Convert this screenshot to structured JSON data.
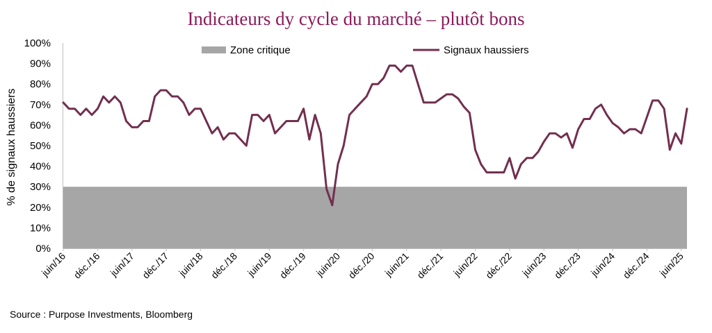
{
  "title": "Indicateurs dy cycle du marché – plutôt bons",
  "source": "Source : Purpose Investments, Bloomberg",
  "chart_data": {
    "type": "line",
    "title": "Indicateurs dy cycle du marché – plutôt bons",
    "ylabel": "% de signaux haussiers",
    "xlabel": "",
    "ylim": [
      0,
      100
    ],
    "y_ticks": [
      "0%",
      "10%",
      "20%",
      "30%",
      "40%",
      "50%",
      "60%",
      "70%",
      "80%",
      "90%",
      "100%"
    ],
    "x_tick_labels": [
      "juin/16",
      "déc./16",
      "juin/17",
      "déc./17",
      "juin/18",
      "déc./18",
      "juin/19",
      "déc./19",
      "juin/20",
      "déc./20",
      "juin/21",
      "déc./21",
      "juin/22",
      "déc./22",
      "juin/23",
      "déc./23",
      "juin/24",
      "déc./24",
      "juin/25"
    ],
    "x_start": "2016-06",
    "critical_zone": {
      "name": "Zone critique",
      "from": 0,
      "to": 30,
      "color": "#a6a6a6"
    },
    "series": [
      {
        "name": "Signaux haussiers",
        "color": "#722F4F",
        "values": [
          71,
          68,
          68,
          65,
          68,
          65,
          68,
          74,
          71,
          74,
          71,
          62,
          59,
          59,
          62,
          62,
          74,
          77,
          77,
          74,
          74,
          71,
          65,
          68,
          68,
          62,
          56,
          59,
          53,
          56,
          56,
          53,
          50,
          65,
          65,
          62,
          65,
          56,
          59,
          62,
          62,
          62,
          68,
          53,
          65,
          56,
          29,
          21,
          41,
          50,
          65,
          68,
          71,
          74,
          80,
          80,
          83,
          89,
          89,
          86,
          89,
          89,
          80,
          71,
          71,
          71,
          73,
          75,
          75,
          73,
          69,
          66,
          48,
          41,
          37,
          37,
          37,
          37,
          44,
          34,
          41,
          44,
          44,
          47,
          52,
          56,
          56,
          54,
          56,
          49,
          58,
          63,
          63,
          68,
          70,
          65,
          61,
          59,
          56,
          58,
          58,
          56,
          64,
          72,
          72,
          68,
          48,
          56,
          51,
          68
        ]
      }
    ],
    "legend": [
      "Zone critique",
      "Signaux haussiers"
    ],
    "legend_position": "top",
    "grid": false
  }
}
